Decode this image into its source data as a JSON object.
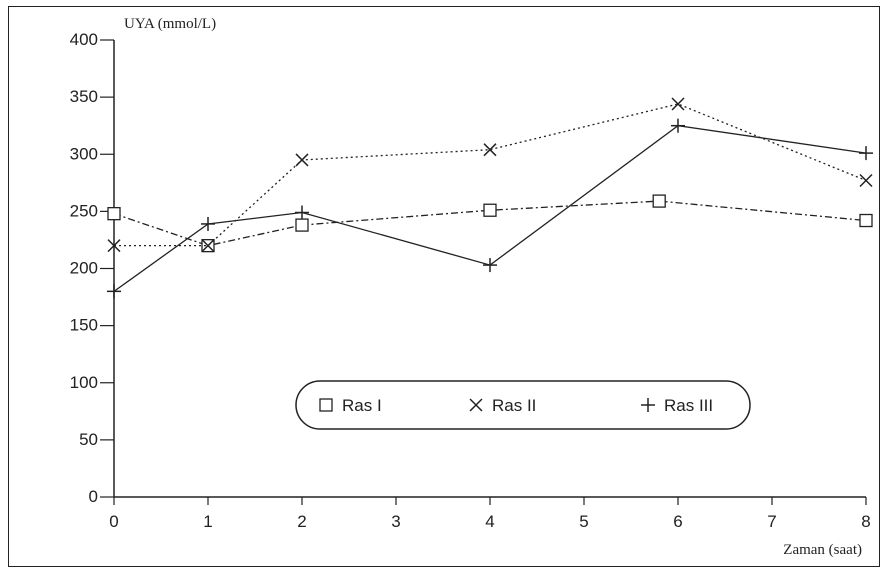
{
  "chart_data": {
    "type": "line",
    "ylabel": "UYA (mmol/L)",
    "xlabel": "Zaman (saat)",
    "xlim": [
      0,
      8
    ],
    "ylim": [
      0,
      400
    ],
    "x_ticks": [
      0,
      1,
      2,
      3,
      4,
      5,
      6,
      7,
      8
    ],
    "y_ticks": [
      0,
      50,
      100,
      150,
      200,
      250,
      300,
      350,
      400
    ],
    "grid": false,
    "legend_position": "center",
    "series": [
      {
        "name": "Ras I",
        "marker": "square",
        "line_style": "dash-dot",
        "x": [
          0,
          1,
          2,
          4,
          5.8,
          8
        ],
        "y": [
          248,
          220,
          238,
          251,
          259,
          242
        ]
      },
      {
        "name": "Ras II",
        "marker": "x",
        "line_style": "dotted",
        "x": [
          0,
          1,
          2,
          4,
          6,
          8
        ],
        "y": [
          220,
          220,
          295,
          304,
          344,
          277
        ]
      },
      {
        "name": "Ras III",
        "marker": "plus",
        "line_style": "solid",
        "x": [
          0,
          1,
          2,
          4,
          6,
          8
        ],
        "y": [
          180,
          239,
          249,
          203,
          325,
          301
        ]
      }
    ],
    "colors": {
      "ink": "#222222",
      "background": "#ffffff"
    }
  }
}
